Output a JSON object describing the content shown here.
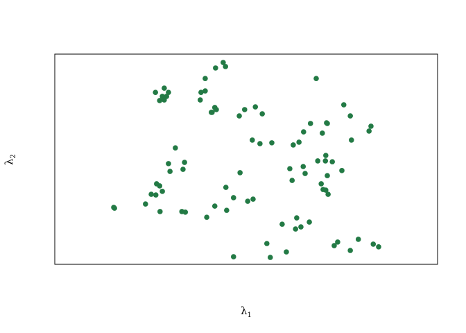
{
  "chart_data": {
    "type": "scatter",
    "xlabel": "λ",
    "xlabel_sub": "1",
    "ylabel": "λ",
    "ylabel_sub": "2",
    "xlim": [
      0,
      100
    ],
    "ylim": [
      0,
      100
    ],
    "grid": false,
    "axis_ticks": false,
    "point_color": "#237a45",
    "points": [
      [
        44.0,
        96.0
      ],
      [
        42.0,
        93.4
      ],
      [
        44.6,
        94.1
      ],
      [
        39.3,
        88.4
      ],
      [
        68.3,
        88.4
      ],
      [
        28.6,
        83.8
      ],
      [
        26.3,
        81.8
      ],
      [
        29.7,
        81.8
      ],
      [
        38.2,
        81.8
      ],
      [
        39.3,
        82.5
      ],
      [
        28.1,
        79.9
      ],
      [
        29.2,
        79.9
      ],
      [
        27.4,
        77.9
      ],
      [
        28.6,
        78.2
      ],
      [
        38.0,
        78.2
      ],
      [
        75.5,
        75.9
      ],
      [
        41.8,
        74.6
      ],
      [
        42.2,
        73.6
      ],
      [
        40.9,
        72.3
      ],
      [
        41.1,
        72.3
      ],
      [
        49.6,
        73.6
      ],
      [
        52.4,
        74.9
      ],
      [
        54.2,
        71.6
      ],
      [
        48.2,
        70.6
      ],
      [
        77.2,
        70.6
      ],
      [
        66.8,
        67.0
      ],
      [
        71.0,
        67.3
      ],
      [
        71.2,
        67.0
      ],
      [
        82.6,
        65.7
      ],
      [
        65.0,
        63.0
      ],
      [
        69.9,
        62.4
      ],
      [
        82.1,
        63.4
      ],
      [
        51.6,
        59.1
      ],
      [
        53.6,
        57.4
      ],
      [
        56.7,
        57.8
      ],
      [
        77.5,
        59.1
      ],
      [
        63.8,
        58.1
      ],
      [
        62.3,
        56.8
      ],
      [
        31.5,
        55.4
      ],
      [
        70.8,
        51.8
      ],
      [
        68.7,
        49.2
      ],
      [
        70.7,
        49.2
      ],
      [
        72.5,
        48.8
      ],
      [
        29.7,
        47.9
      ],
      [
        33.9,
        48.5
      ],
      [
        64.9,
        46.5
      ],
      [
        61.4,
        45.5
      ],
      [
        33.5,
        45.2
      ],
      [
        75.0,
        44.6
      ],
      [
        65.4,
        43.2
      ],
      [
        30.1,
        44.2
      ],
      [
        48.4,
        43.6
      ],
      [
        71.2,
        42.2
      ],
      [
        62.0,
        39.9
      ],
      [
        69.6,
        38.3
      ],
      [
        26.6,
        38.3
      ],
      [
        27.4,
        37.3
      ],
      [
        44.7,
        36.6
      ],
      [
        70.1,
        35.6
      ],
      [
        70.8,
        35.3
      ],
      [
        28.1,
        34.7
      ],
      [
        71.4,
        33.3
      ],
      [
        25.2,
        33.3
      ],
      [
        26.4,
        33.0
      ],
      [
        46.7,
        31.7
      ],
      [
        51.8,
        31.0
      ],
      [
        50.4,
        30.0
      ],
      [
        15.4,
        27.1
      ],
      [
        15.6,
        26.7
      ],
      [
        23.7,
        28.7
      ],
      [
        41.8,
        27.7
      ],
      [
        44.9,
        25.7
      ],
      [
        27.5,
        25.1
      ],
      [
        33.2,
        25.1
      ],
      [
        34.1,
        24.8
      ],
      [
        39.7,
        22.4
      ],
      [
        63.2,
        22.1
      ],
      [
        66.5,
        20.1
      ],
      [
        59.4,
        19.1
      ],
      [
        64.3,
        17.8
      ],
      [
        62.9,
        16.8
      ],
      [
        79.3,
        11.9
      ],
      [
        73.9,
        10.6
      ],
      [
        55.4,
        9.9
      ],
      [
        73.0,
        8.9
      ],
      [
        83.2,
        9.6
      ],
      [
        84.6,
        8.3
      ],
      [
        77.2,
        6.6
      ],
      [
        60.5,
        5.9
      ],
      [
        46.7,
        3.6
      ],
      [
        56.3,
        3.3
      ]
    ]
  }
}
